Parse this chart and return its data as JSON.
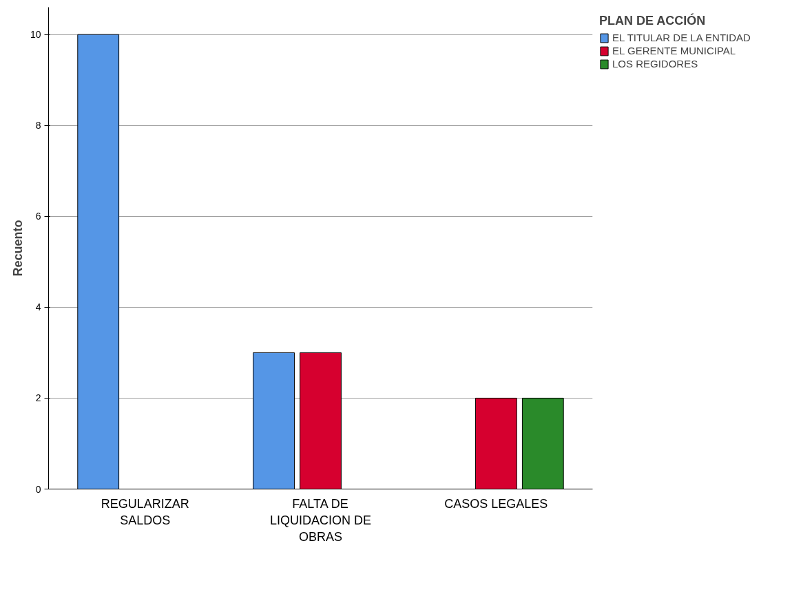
{
  "chart_data": {
    "type": "bar",
    "ylabel": "Recuento",
    "legend_title": "PLAN DE ACCIÓN",
    "categories": [
      "REGULARIZAR SALDOS",
      "FALTA DE LIQUIDACION DE OBRAS",
      "CASOS LEGALES"
    ],
    "series": [
      {
        "name": "EL TITULAR DE LA ENTIDAD",
        "color": "#5596e6",
        "values": [
          10,
          3,
          null
        ]
      },
      {
        "name": "EL GERENTE MUNICIPAL",
        "color": "#d6002f",
        "values": [
          null,
          3,
          2
        ]
      },
      {
        "name": "LOS REGIDORES",
        "color": "#2a8a2a",
        "values": [
          null,
          null,
          2
        ]
      }
    ],
    "ylim": [
      0,
      10.6
    ],
    "yticks": [
      0,
      2,
      4,
      6,
      8,
      10
    ],
    "grid": "y",
    "legend": "top right"
  }
}
